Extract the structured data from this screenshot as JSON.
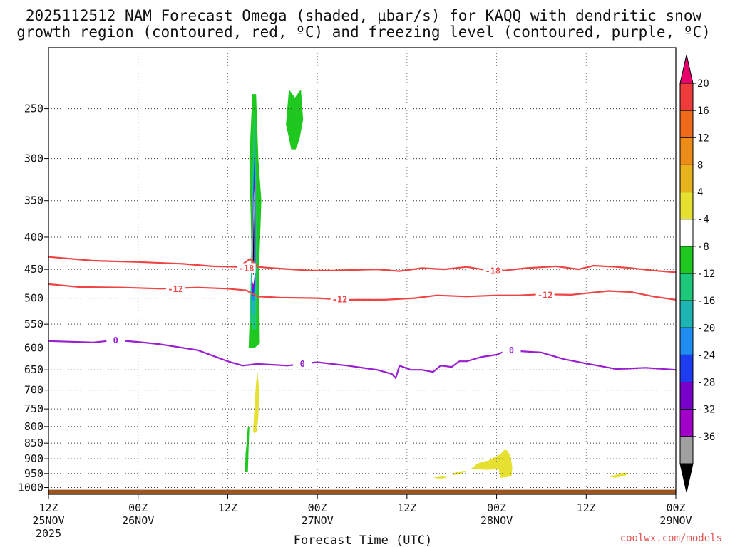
{
  "chart_data": {
    "type": "time-height cross section",
    "title_line1": "2025112512 NAM Forecast Omega (shaded, μbar/s) for KAQQ with dendritic snow",
    "title_line2": "growth region (contoured, red, ºC) and freezing level (contoured, purple, ºC)",
    "xlabel": "Forecast Time (UTC)",
    "credit": "coolwx.com/models",
    "x_units": "hours since 2025-11-25 12Z",
    "xlim": [
      0,
      84
    ],
    "ylim_hpa": [
      1025,
      200
    ],
    "y_scale": "log-pressure (reversed)",
    "x_ticks": [
      {
        "hour": 0,
        "top": "12Z",
        "bottom": "25NOV",
        "extra": "2025"
      },
      {
        "hour": 12,
        "top": "00Z",
        "bottom": "26NOV"
      },
      {
        "hour": 24,
        "top": "12Z",
        "bottom": ""
      },
      {
        "hour": 36,
        "top": "00Z",
        "bottom": "27NOV"
      },
      {
        "hour": 48,
        "top": "12Z",
        "bottom": ""
      },
      {
        "hour": 60,
        "top": "00Z",
        "bottom": "28NOV"
      },
      {
        "hour": 72,
        "top": "12Z",
        "bottom": ""
      },
      {
        "hour": 84,
        "top": "00Z",
        "bottom": "29NOV"
      }
    ],
    "y_ticks": [
      250,
      300,
      350,
      400,
      450,
      500,
      550,
      600,
      650,
      700,
      750,
      800,
      850,
      900,
      950,
      1000
    ],
    "colorbar": {
      "labels": [
        "20",
        "16",
        "12",
        "8",
        "4",
        "-4",
        "-8",
        "-12",
        "-16",
        "-20",
        "-24",
        "-28",
        "-32",
        "-36"
      ],
      "colors": [
        "#e8006c",
        "#ee3b3b",
        "#ee6a1a",
        "#ee8c1a",
        "#e6b21e",
        "#e6e030",
        "#ffffff",
        "#1ec81e",
        "#1ec87a",
        "#1eb4b4",
        "#1e8cf0",
        "#1e3cf0",
        "#7800c8",
        "#a000c8",
        "#a0a0a0",
        "#000000"
      ]
    },
    "series": [
      {
        "name": "-18",
        "kind": "dendritic growth contour",
        "color": "#ee4444",
        "label": "-18",
        "label_at": [
          [
            26.5,
            448
          ],
          [
            59.5,
            452
          ]
        ],
        "points": [
          [
            0,
            430
          ],
          [
            6,
            436
          ],
          [
            12,
            438
          ],
          [
            18,
            441
          ],
          [
            22,
            445
          ],
          [
            25.5,
            446
          ],
          [
            27,
            433
          ],
          [
            28,
            446
          ],
          [
            30,
            448
          ],
          [
            35,
            452
          ],
          [
            38,
            452
          ],
          [
            44,
            450
          ],
          [
            47,
            453
          ],
          [
            50,
            448
          ],
          [
            53,
            450
          ],
          [
            56,
            446
          ],
          [
            58,
            450
          ],
          [
            61,
            452
          ],
          [
            64,
            448
          ],
          [
            68,
            445
          ],
          [
            71,
            450
          ],
          [
            73,
            444
          ],
          [
            76,
            446
          ],
          [
            78,
            448
          ],
          [
            81,
            452
          ],
          [
            84,
            455
          ]
        ]
      },
      {
        "name": "-12",
        "kind": "dendritic growth contour",
        "color": "#ee4444",
        "label": "-12",
        "label_at": [
          [
            17,
            483
          ],
          [
            39,
            502
          ],
          [
            66.5,
            494
          ]
        ],
        "points": [
          [
            0,
            475
          ],
          [
            4,
            480
          ],
          [
            10,
            481
          ],
          [
            15,
            483
          ],
          [
            20,
            481
          ],
          [
            24,
            483
          ],
          [
            26.5,
            486
          ],
          [
            28,
            497
          ],
          [
            31,
            499
          ],
          [
            36,
            500
          ],
          [
            40,
            503
          ],
          [
            45,
            503
          ],
          [
            49,
            500
          ],
          [
            52,
            495
          ],
          [
            56,
            497
          ],
          [
            60,
            495
          ],
          [
            63,
            495
          ],
          [
            66,
            493
          ],
          [
            70,
            494
          ],
          [
            75,
            487
          ],
          [
            78,
            489
          ],
          [
            81,
            497
          ],
          [
            84,
            503
          ]
        ]
      },
      {
        "name": "0",
        "kind": "freezing level contour",
        "color": "#9a1fd0",
        "label": "0",
        "label_at": [
          [
            9,
            583
          ],
          [
            34,
            635
          ],
          [
            62,
            605
          ]
        ],
        "points": [
          [
            0,
            585
          ],
          [
            6,
            588
          ],
          [
            9,
            583
          ],
          [
            12,
            587
          ],
          [
            15,
            592
          ],
          [
            20,
            605
          ],
          [
            24,
            630
          ],
          [
            26,
            640
          ],
          [
            28,
            636
          ],
          [
            32,
            640
          ],
          [
            36,
            632
          ],
          [
            40,
            640
          ],
          [
            44,
            650
          ],
          [
            46,
            660
          ],
          [
            46.5,
            670
          ],
          [
            47,
            640
          ],
          [
            48.5,
            650
          ],
          [
            50,
            650
          ],
          [
            51.5,
            655
          ],
          [
            52.5,
            640
          ],
          [
            54,
            643
          ],
          [
            55,
            630
          ],
          [
            56,
            630
          ],
          [
            58,
            620
          ],
          [
            60,
            615
          ],
          [
            61,
            608
          ],
          [
            63,
            607
          ],
          [
            66,
            610
          ],
          [
            69,
            625
          ],
          [
            72,
            635
          ],
          [
            76,
            648
          ],
          [
            80,
            645
          ],
          [
            84,
            650
          ]
        ]
      }
    ],
    "omega_shading": [
      {
        "color": "#1ec81e",
        "value": "-8 to -4",
        "points": [
          [
            26.8,
            600
          ],
          [
            27.2,
            430
          ],
          [
            26.9,
            300
          ],
          [
            27.3,
            237
          ],
          [
            27.8,
            237
          ],
          [
            28.1,
            300
          ],
          [
            28.5,
            350
          ],
          [
            28.2,
            450
          ],
          [
            28.3,
            590
          ],
          [
            27.6,
            600
          ]
        ]
      },
      {
        "color": "#1ec87a",
        "value": "-12 to -8",
        "points": [
          [
            27,
            540
          ],
          [
            27.3,
            330
          ],
          [
            27.5,
            250
          ],
          [
            27.8,
            320
          ],
          [
            27.9,
            450
          ],
          [
            27.8,
            560
          ],
          [
            27.3,
            560
          ]
        ]
      },
      {
        "color": "#1eb4b4",
        "value": "-16 to -12",
        "points": [
          [
            27.1,
            520
          ],
          [
            27.35,
            340
          ],
          [
            27.55,
            270
          ],
          [
            27.75,
            340
          ],
          [
            27.8,
            450
          ],
          [
            27.6,
            530
          ],
          [
            27.3,
            530
          ]
        ]
      },
      {
        "color": "#1e8cf0",
        "value": "-20 to -16",
        "points": [
          [
            27.15,
            500
          ],
          [
            27.4,
            350
          ],
          [
            27.55,
            290
          ],
          [
            27.7,
            350
          ],
          [
            27.75,
            450
          ],
          [
            27.55,
            505
          ],
          [
            27.3,
            505
          ]
        ]
      },
      {
        "color": "#1e3cf0",
        "value": "-24 to -20",
        "points": [
          [
            27.2,
            490
          ],
          [
            27.4,
            350
          ],
          [
            27.55,
            300
          ],
          [
            27.7,
            360
          ],
          [
            27.7,
            450
          ],
          [
            27.5,
            495
          ],
          [
            27.3,
            495
          ]
        ]
      },
      {
        "color": "#a000c8",
        "value": "-32 to -28",
        "points": [
          [
            27.25,
            480
          ],
          [
            27.4,
            360
          ],
          [
            27.55,
            320
          ],
          [
            27.65,
            360
          ],
          [
            27.65,
            460
          ],
          [
            27.45,
            485
          ],
          [
            27.35,
            485
          ]
        ]
      },
      {
        "color": "#ffffff",
        "value": "-4 to 4",
        "points": [
          [
            27.3,
            470
          ],
          [
            27.4,
            370
          ],
          [
            27.52,
            335
          ],
          [
            27.6,
            370
          ],
          [
            27.6,
            460
          ],
          [
            27.45,
            475
          ],
          [
            27.38,
            475
          ]
        ]
      },
      {
        "color": "#000000",
        "value": "< -36",
        "points": [
          [
            27.35,
            455
          ],
          [
            27.42,
            390
          ],
          [
            27.5,
            345
          ],
          [
            27.56,
            390
          ],
          [
            27.55,
            450
          ],
          [
            27.45,
            460
          ]
        ]
      },
      {
        "color": "#1ec81e",
        "value": "-8 to -4",
        "points": [
          [
            31.8,
            265
          ],
          [
            32.2,
            233
          ],
          [
            33,
            240
          ],
          [
            33.8,
            233
          ],
          [
            34.1,
            260
          ],
          [
            33.6,
            280
          ],
          [
            33.1,
            290
          ],
          [
            32.5,
            290
          ],
          [
            32.1,
            275
          ]
        ]
      },
      {
        "color": "#1ec81e",
        "value": "-8 to -4",
        "points": [
          [
            26.3,
            945
          ],
          [
            26.4,
            880
          ],
          [
            26.5,
            860
          ],
          [
            26.7,
            800
          ],
          [
            26.9,
            800
          ],
          [
            26.8,
            860
          ],
          [
            26.7,
            945
          ]
        ]
      },
      {
        "color": "#e6e030",
        "value": "4 to 8",
        "points": [
          [
            27.4,
            815
          ],
          [
            27.6,
            740
          ],
          [
            27.8,
            680
          ],
          [
            28,
            655
          ],
          [
            28.2,
            700
          ],
          [
            28.1,
            770
          ],
          [
            27.9,
            815
          ],
          [
            27.6,
            820
          ]
        ]
      },
      {
        "color": "#e6e030",
        "value": "4 to 8",
        "points": [
          [
            51.5,
            965
          ],
          [
            52,
            962
          ],
          [
            53,
            960
          ],
          [
            53.3,
            965
          ],
          [
            52.5,
            968
          ]
        ]
      },
      {
        "color": "#e6e030",
        "value": "4 to 8",
        "points": [
          [
            54,
            950
          ],
          [
            55,
            943
          ],
          [
            56,
            940
          ],
          [
            55.3,
            950
          ],
          [
            54.3,
            955
          ]
        ]
      },
      {
        "color": "#e6e030",
        "value": "4 to 8",
        "points": [
          [
            56.5,
            935
          ],
          [
            57.5,
            915
          ],
          [
            59,
            905
          ],
          [
            60.5,
            885
          ],
          [
            61.1,
            870
          ],
          [
            61.5,
            875
          ],
          [
            61.9,
            895
          ],
          [
            62.1,
            928
          ],
          [
            62,
            960
          ],
          [
            60.5,
            965
          ],
          [
            60.3,
            935
          ],
          [
            58.5,
            937
          ],
          [
            57.5,
            935
          ]
        ]
      },
      {
        "color": "#e6e030",
        "value": "4 to 8",
        "points": [
          [
            75,
            960
          ],
          [
            76,
            955
          ],
          [
            76.6,
            948
          ],
          [
            77.6,
            948
          ],
          [
            77.2,
            958
          ],
          [
            75.8,
            965
          ]
        ]
      }
    ],
    "surface": {
      "color": "#9b5523",
      "top_hpa": 1008,
      "bottom_hpa": 1025
    }
  }
}
